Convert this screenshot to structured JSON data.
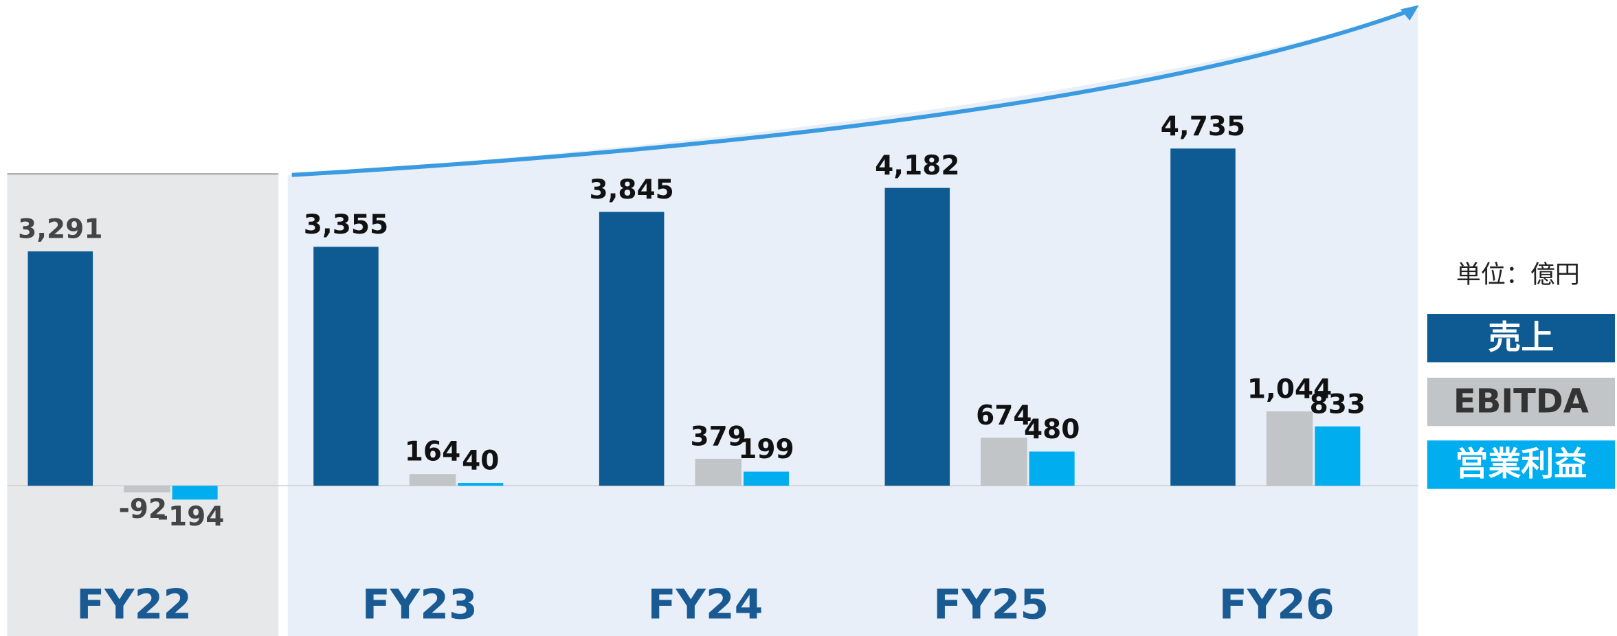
{
  "chart_data": {
    "type": "bar",
    "categories": [
      "FY22",
      "FY23",
      "FY24",
      "FY25",
      "FY26"
    ],
    "unit_label": "単位：億円",
    "series": [
      {
        "name": "売上",
        "color": "#0e5a93",
        "values": [
          3291,
          3355,
          3845,
          4182,
          4735
        ],
        "value_labels": [
          "3,291",
          "3,355",
          "3,845",
          "4,182",
          "4,735"
        ]
      },
      {
        "name": "EBITDA",
        "color": "#c2c5c7",
        "values": [
          -92,
          164,
          379,
          674,
          1044
        ],
        "value_labels": [
          "-92",
          "164",
          "379",
          "674",
          "1,044"
        ]
      },
      {
        "name": "営業利益",
        "color": "#00adef",
        "values": [
          -194,
          40,
          199,
          480,
          833
        ],
        "value_labels": [
          "-194",
          "40",
          "199",
          "480",
          "833"
        ]
      }
    ]
  }
}
